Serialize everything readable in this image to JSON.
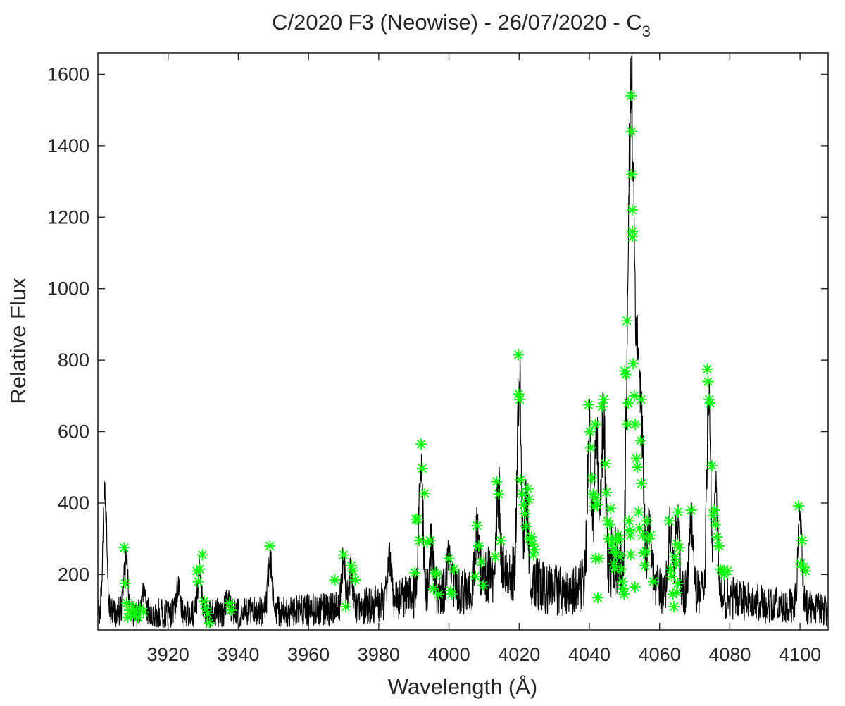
{
  "chart_data": {
    "type": "line",
    "title": "C/2020 F3 (Neowise) - 26/07/2020 - C",
    "title_subscript": "3",
    "xlabel": "Wavelength (Å)",
    "ylabel": "Relative Flux",
    "xlim": [
      3900,
      4108
    ],
    "ylim": [
      45,
      1660
    ],
    "x_ticks": [
      3920,
      3940,
      3960,
      3980,
      4000,
      4020,
      4040,
      4060,
      4080,
      4100
    ],
    "y_ticks": [
      200,
      400,
      600,
      800,
      1000,
      1200,
      1400,
      1600
    ],
    "grid": false,
    "legend": "none",
    "series": [
      {
        "kind": "spectrum-line",
        "color": "#000000",
        "continuum": [
          [
            3900,
            95
          ],
          [
            3930,
            90
          ],
          [
            3945,
            95
          ],
          [
            3960,
            100
          ],
          [
            3975,
            110
          ],
          [
            3985,
            130
          ],
          [
            3995,
            150
          ],
          [
            4005,
            150
          ],
          [
            4012,
            200
          ],
          [
            4020,
            200
          ],
          [
            4028,
            160
          ],
          [
            4035,
            150
          ],
          [
            4045,
            230
          ],
          [
            4052,
            230
          ],
          [
            4060,
            160
          ],
          [
            4068,
            150
          ],
          [
            4078,
            140
          ],
          [
            4090,
            115
          ],
          [
            4100,
            110
          ],
          [
            4108,
            100
          ]
        ],
        "peaks": [
          [
            3902,
            475
          ],
          [
            3908,
            270
          ],
          [
            3913,
            160
          ],
          [
            3923,
            180
          ],
          [
            3929,
            230
          ],
          [
            3937,
            150
          ],
          [
            3949,
            280
          ],
          [
            3970,
            250
          ],
          [
            3972,
            225
          ],
          [
            3983,
            270
          ],
          [
            3992,
            565
          ],
          [
            3995,
            290
          ],
          [
            4000,
            250
          ],
          [
            4008,
            330
          ],
          [
            4014,
            460
          ],
          [
            4020,
            815
          ],
          [
            4022,
            445
          ],
          [
            4040,
            675
          ],
          [
            4042,
            620
          ],
          [
            4044,
            690
          ],
          [
            4051,
            910
          ],
          [
            4052,
            1540
          ],
          [
            4053,
            790
          ],
          [
            4054,
            690
          ],
          [
            4055,
            575
          ],
          [
            4057,
            350
          ],
          [
            4063,
            340
          ],
          [
            4065,
            380
          ],
          [
            4069,
            380
          ],
          [
            4074,
            775
          ],
          [
            4076,
            505
          ],
          [
            4100,
            430
          ]
        ]
      },
      {
        "kind": "peak-markers",
        "color": "#00ff00",
        "marker": "asterisk",
        "points": [
          [
            3907.5,
            275
          ],
          [
            3907.8,
            175
          ],
          [
            3908.2,
            120
          ],
          [
            3909,
            100
          ],
          [
            3910,
            110
          ],
          [
            3911,
            95
          ],
          [
            3912,
            105
          ],
          [
            3913,
            95
          ],
          [
            3908.5,
            80
          ],
          [
            3910.5,
            85
          ],
          [
            3911.5,
            80
          ],
          [
            3909.5,
            90
          ],
          [
            3928.2,
            210
          ],
          [
            3929,
            215
          ],
          [
            3929.8,
            255
          ],
          [
            3928.6,
            180
          ],
          [
            3930.3,
            125
          ],
          [
            3930.8,
            105
          ],
          [
            3931.3,
            90
          ],
          [
            3931.8,
            65
          ],
          [
            3937.5,
            120
          ],
          [
            3938,
            100
          ],
          [
            3949,
            280
          ],
          [
            3967.5,
            185
          ],
          [
            3970,
            255
          ],
          [
            3970.6,
            110
          ],
          [
            3972.2,
            225
          ],
          [
            3972.7,
            210
          ],
          [
            3973.3,
            185
          ],
          [
            3990.6,
            355
          ],
          [
            3991.1,
            355
          ],
          [
            3991.6,
            295
          ],
          [
            3990.3,
            205
          ],
          [
            3992.1,
            565
          ],
          [
            3992.4,
            497
          ],
          [
            3993.1,
            427
          ],
          [
            3993.8,
            290
          ],
          [
            3994.6,
            295
          ],
          [
            3995.6,
            160
          ],
          [
            3996.1,
            205
          ],
          [
            3996.6,
            200
          ],
          [
            3997.1,
            145
          ],
          [
            4000,
            245
          ],
          [
            4000.5,
            155
          ],
          [
            4000.8,
            145
          ],
          [
            4001.5,
            215
          ],
          [
            4007.5,
            195
          ],
          [
            4008,
            337
          ],
          [
            4008.5,
            280
          ],
          [
            4009.2,
            235
          ],
          [
            4009.8,
            170
          ],
          [
            4013.6,
            460
          ],
          [
            4014.2,
            425
          ],
          [
            4014.8,
            295
          ],
          [
            4013.2,
            250
          ],
          [
            4019.8,
            815
          ],
          [
            4019.9,
            705
          ],
          [
            4020.2,
            690
          ],
          [
            4020.4,
            465
          ],
          [
            4021,
            425
          ],
          [
            4021.4,
            395
          ],
          [
            4021.7,
            370
          ],
          [
            4022,
            335
          ],
          [
            4022.5,
            440
          ],
          [
            4022.8,
            410
          ],
          [
            4023,
            300
          ],
          [
            4023.5,
            305
          ],
          [
            4023.8,
            285
          ],
          [
            4024.1,
            255
          ],
          [
            4024.4,
            270
          ],
          [
            4039.8,
            675
          ],
          [
            4040.1,
            600
          ],
          [
            4040.4,
            555
          ],
          [
            4040.8,
            470
          ],
          [
            4041.1,
            425
          ],
          [
            4041.4,
            390
          ],
          [
            4041.7,
            620
          ],
          [
            4041.9,
            415
          ],
          [
            4042.2,
            395
          ],
          [
            4041.8,
            245
          ],
          [
            4042.4,
            135
          ],
          [
            4042.7,
            245
          ],
          [
            4043.6,
            670
          ],
          [
            4044.1,
            690
          ],
          [
            4044.6,
            510
          ],
          [
            4044.9,
            430
          ],
          [
            4045.2,
            350
          ],
          [
            4045.5,
            300
          ],
          [
            4045.8,
            340
          ],
          [
            4046.1,
            385
          ],
          [
            4046.4,
            290
          ],
          [
            4046.7,
            270
          ],
          [
            4047,
            230
          ],
          [
            4047.3,
            215
          ],
          [
            4047.6,
            260
          ],
          [
            4047.9,
            295
          ],
          [
            4048.2,
            310
          ],
          [
            4048.5,
            300
          ],
          [
            4048.8,
            250
          ],
          [
            4049.1,
            215
          ],
          [
            4049.4,
            180
          ],
          [
            4049.6,
            160
          ],
          [
            4049.9,
            145
          ],
          [
            4050.1,
            770
          ],
          [
            4050.4,
            760
          ],
          [
            4050.7,
            910
          ],
          [
            4050.9,
            620
          ],
          [
            4051.1,
            680
          ],
          [
            4051.3,
            350
          ],
          [
            4051.5,
            325
          ],
          [
            4051.7,
            310
          ],
          [
            4051.8,
            255
          ],
          [
            4051.9,
            1540
          ],
          [
            4052,
            1440
          ],
          [
            4052.1,
            1320
          ],
          [
            4052.2,
            1220
          ],
          [
            4052.25,
            1160
          ],
          [
            4052.3,
            1145
          ],
          [
            4052.5,
            790
          ],
          [
            4052.8,
            700
          ],
          [
            4053.1,
            620
          ],
          [
            4053.4,
            525
          ],
          [
            4053.7,
            500
          ],
          [
            4054,
            375
          ],
          [
            4054.3,
            330
          ],
          [
            4054.6,
            575
          ],
          [
            4054.9,
            455
          ],
          [
            4055.2,
            310
          ],
          [
            4055.5,
            260
          ],
          [
            4055.8,
            225
          ],
          [
            4056.1,
            265
          ],
          [
            4056.4,
            350
          ],
          [
            4056.7,
            300
          ],
          [
            4057.5,
            310
          ],
          [
            4058.2,
            180
          ],
          [
            4054.8,
            690
          ],
          [
            4053,
            165
          ],
          [
            4062.8,
            350
          ],
          [
            4063.2,
            215
          ],
          [
            4063.5,
            195
          ],
          [
            4063.8,
            145
          ],
          [
            4064.1,
            110
          ],
          [
            4064.4,
            250
          ],
          [
            4064.7,
            230
          ],
          [
            4065,
            285
          ],
          [
            4065.3,
            375
          ],
          [
            4065.6,
            275
          ],
          [
            4065.2,
            175
          ],
          [
            4064.9,
            150
          ],
          [
            4069,
            380
          ],
          [
            4073.6,
            775
          ],
          [
            4073.8,
            740
          ],
          [
            4074.1,
            690
          ],
          [
            4074.4,
            680
          ],
          [
            4074.9,
            505
          ],
          [
            4075.3,
            365
          ],
          [
            4075.6,
            380
          ],
          [
            4075.9,
            340
          ],
          [
            4076.4,
            305
          ],
          [
            4076.9,
            280
          ],
          [
            4077.4,
            215
          ],
          [
            4077.9,
            210
          ],
          [
            4078.4,
            200
          ],
          [
            4079.4,
            210
          ],
          [
            4099.6,
            392
          ],
          [
            4100.2,
            230
          ],
          [
            4100.6,
            295
          ],
          [
            4101.1,
            220
          ],
          [
            4101.6,
            210
          ]
        ]
      }
    ]
  }
}
